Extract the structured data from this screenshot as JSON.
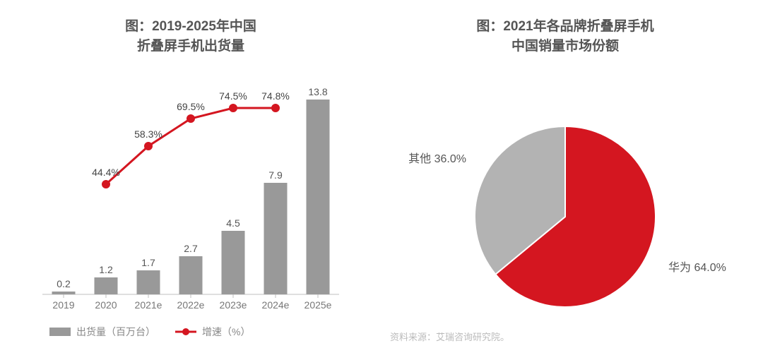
{
  "left_chart": {
    "type": "bar+line",
    "title": "图：2019-2025年中国\n折叠屏手机出货量",
    "title_fontsize": 19,
    "title_color": "#555555",
    "categories": [
      "2019",
      "2020",
      "2021e",
      "2022e",
      "2023e",
      "2024e",
      "2025e"
    ],
    "bar_series": {
      "name": "出货量（百万台）",
      "values": [
        0.2,
        1.2,
        1.7,
        2.7,
        4.5,
        7.9,
        13.8
      ],
      "color": "#999999",
      "bar_width": 0.55
    },
    "line_series": {
      "name": "增速（%）",
      "values_pct": [
        null,
        44.4,
        58.3,
        69.5,
        74.5,
        74.8,
        null
      ],
      "display_labels": [
        "",
        "44.4%",
        "58.3%",
        "69.5%",
        "74.5%",
        "74.8%",
        ""
      ],
      "color": "#d41620",
      "line_width": 3,
      "marker": "circle",
      "marker_size": 10,
      "marker_fill": "#d41620",
      "marker_stroke": "#d41620"
    },
    "y_primary": {
      "min": 0,
      "max": 15
    },
    "y_secondary_pct": {
      "min": 30,
      "max": 85
    },
    "axis_color": "#bfbfbf",
    "tick_font_color": "#777777",
    "label_fontsize": 14,
    "background_color": "#ffffff",
    "legend_items": [
      "出货量（百万台）",
      "增速（%）"
    ]
  },
  "right_chart": {
    "type": "pie",
    "title": "图：2021年各品牌折叠屏手机\n中国销量市场份额",
    "title_fontsize": 19,
    "title_color": "#555555",
    "slices": [
      {
        "name": "华为",
        "value": 64.0,
        "label": "华为 64.0%",
        "color": "#d41620"
      },
      {
        "name": "其他",
        "value": 36.0,
        "label": "其他 36.0%",
        "color": "#b3b3b3"
      }
    ],
    "radius": 128,
    "stroke": "#ffffff",
    "stroke_width": 2,
    "background_color": "#ffffff",
    "start_angle_deg": -90
  },
  "source_note": "资料来源：艾瑞咨询研究院。",
  "source_color": "#bbbbbb"
}
